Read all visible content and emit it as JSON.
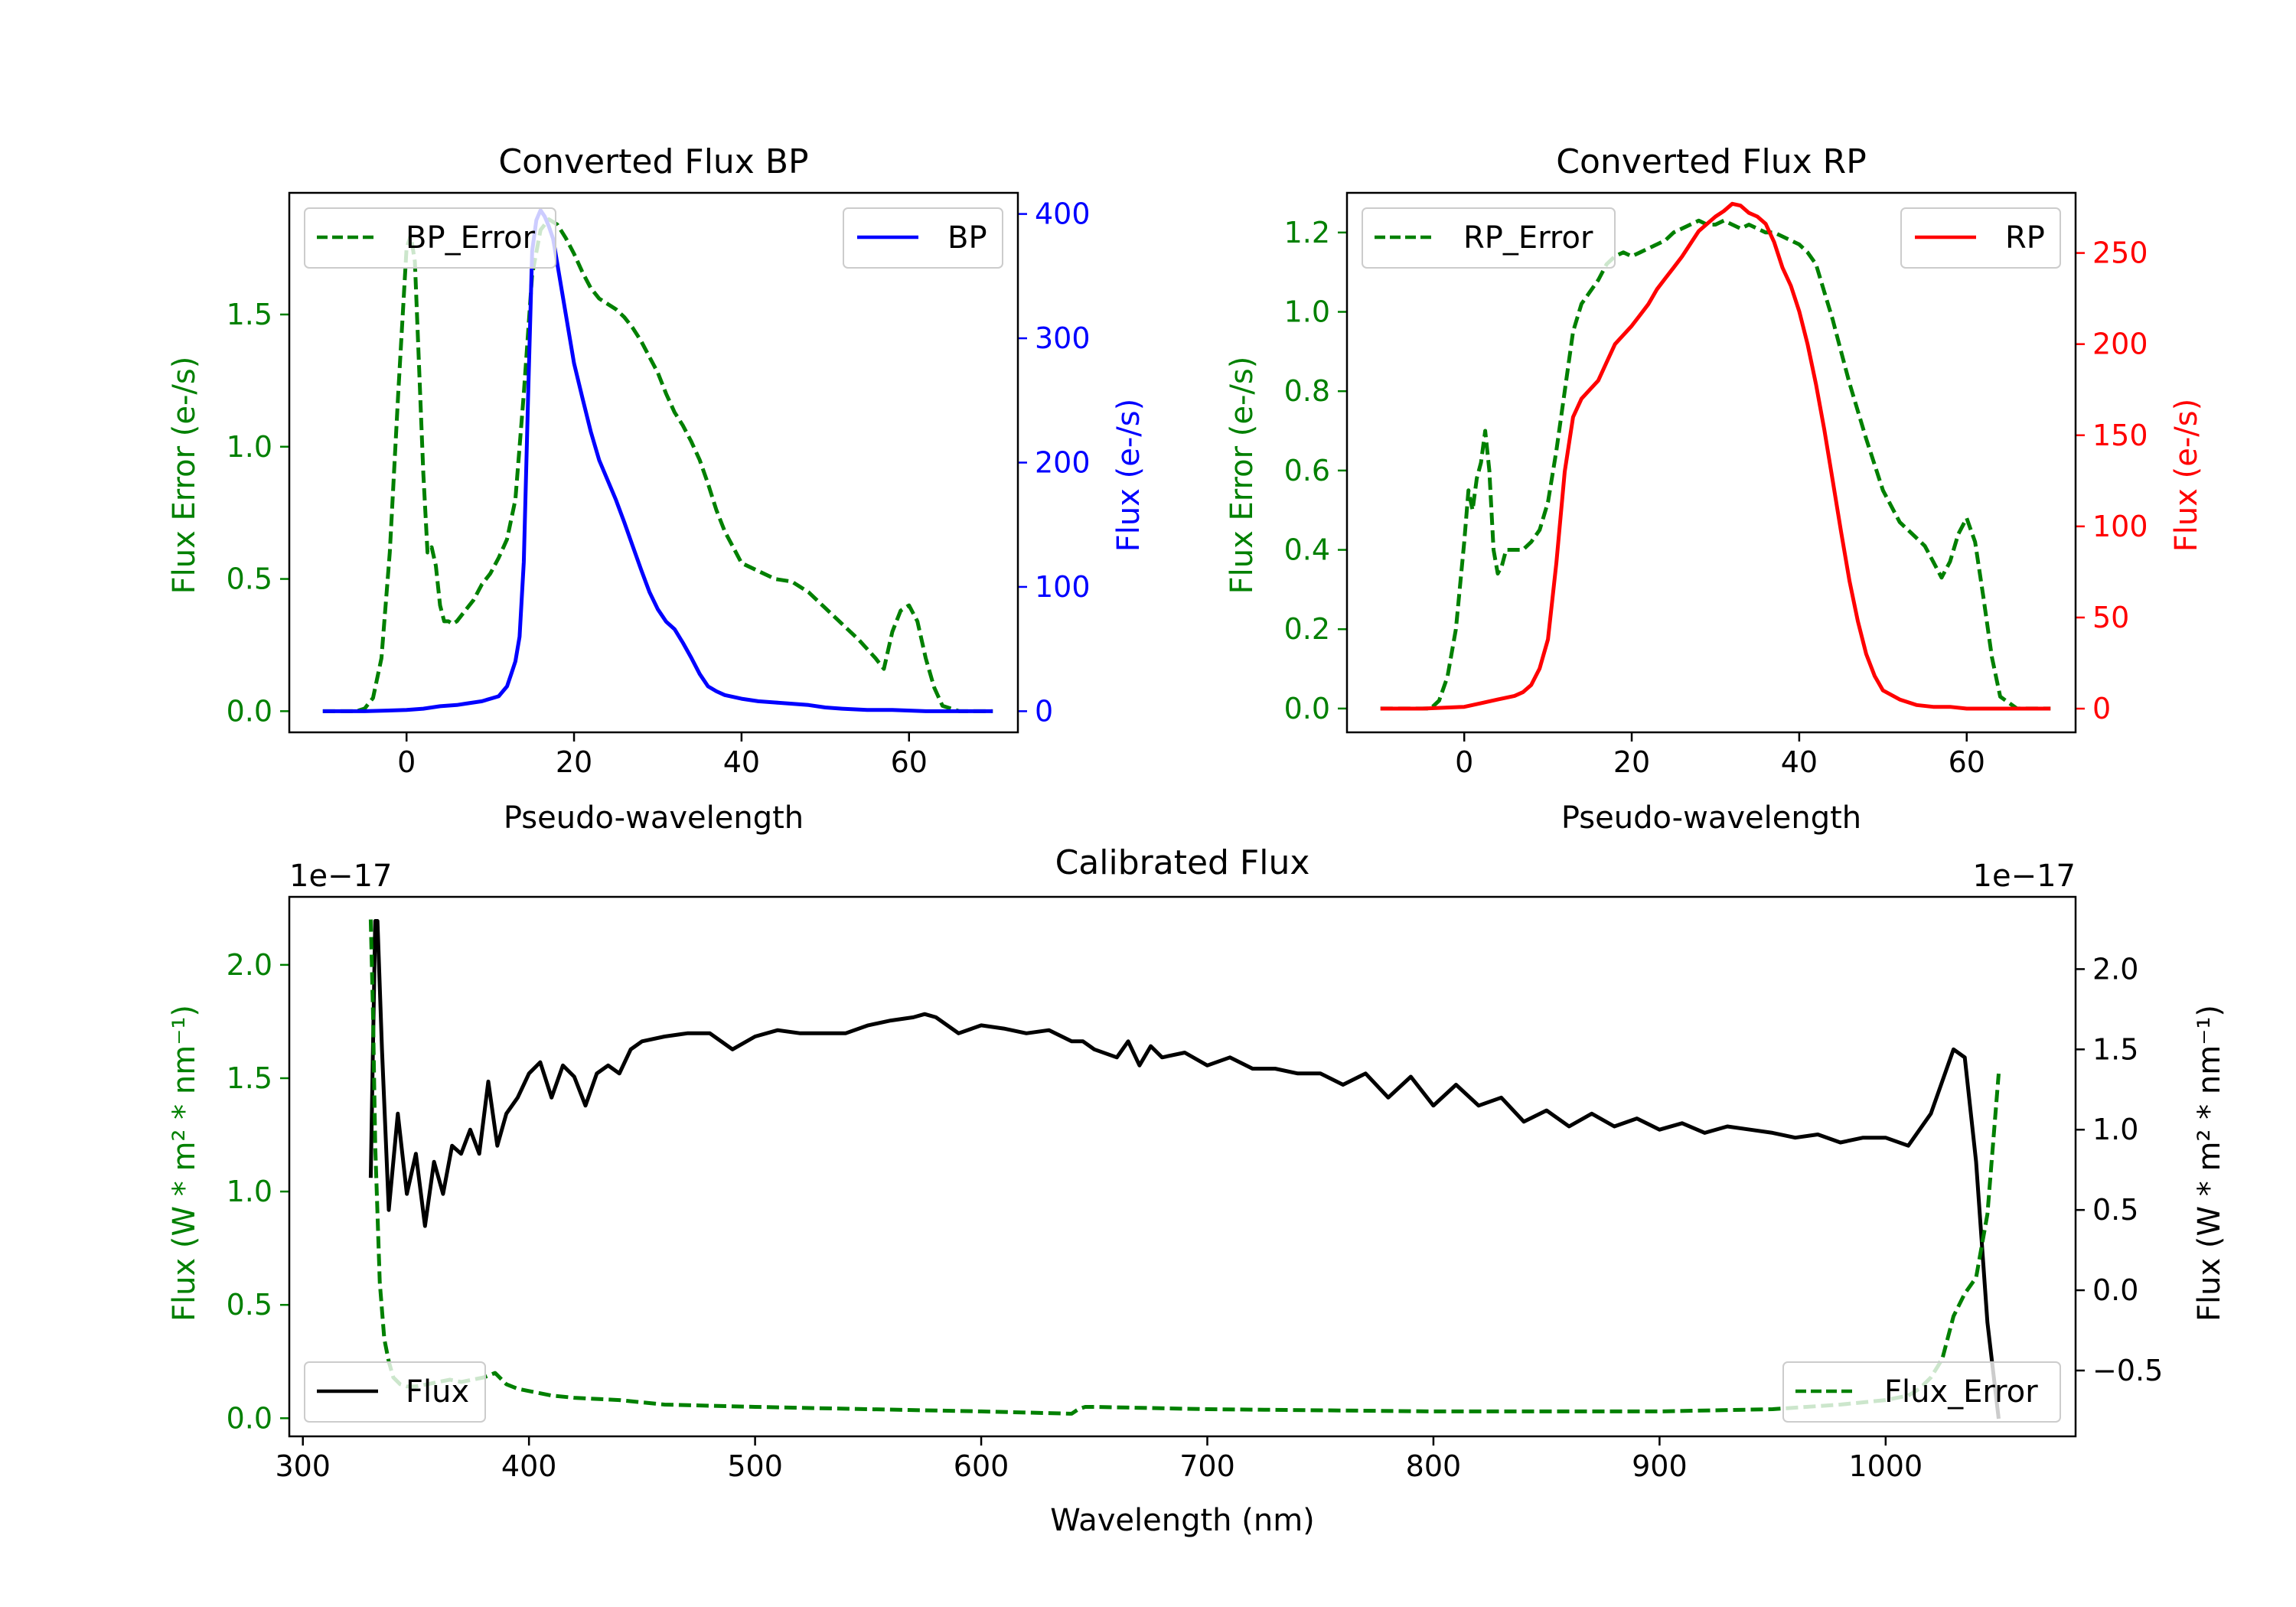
{
  "colors": {
    "green": "#008000",
    "blue": "#0000ff",
    "red": "#ff0000",
    "black": "#000000"
  },
  "chart_data": [
    {
      "id": "bp",
      "type": "line",
      "title": "Converted Flux BP",
      "xlabel": "Pseudo-wavelength",
      "ylabel_left": "Flux Error (e-/s)",
      "ylabel_right": "Flux (e-/s)",
      "xlim": [
        -14,
        73
      ],
      "ylim_left": [
        -0.08,
        1.96
      ],
      "ylim_right": [
        -17,
        417
      ],
      "xticks": [
        0,
        20,
        40,
        60
      ],
      "yticks_left": [
        "0.0",
        "0.5",
        "1.0",
        "1.5"
      ],
      "yticks_left_values": [
        0,
        0.5,
        1.0,
        1.5
      ],
      "yticks_right": [
        "0",
        "100",
        "200",
        "300",
        "400"
      ],
      "yticks_right_values": [
        0,
        100,
        200,
        300,
        400
      ],
      "series": [
        {
          "name": "BP_Error",
          "axis": "left",
          "style": "dashed",
          "color": "green",
          "x": [
            -10,
            -6,
            -5,
            -4,
            -3,
            -2,
            -1,
            0,
            0.5,
            1,
            1.5,
            2,
            2.5,
            3,
            3.5,
            4,
            4.5,
            5,
            5.5,
            6,
            7,
            8,
            9,
            10,
            11,
            12,
            13,
            14,
            15,
            16,
            17,
            18,
            19,
            20,
            21,
            22,
            23,
            24,
            25,
            26,
            27,
            28,
            29,
            30,
            31,
            32,
            33,
            34,
            35,
            36,
            37,
            38,
            39,
            40,
            42,
            44,
            46,
            48,
            50,
            52,
            54,
            56,
            57,
            58,
            59,
            60,
            61,
            62,
            63,
            64,
            66,
            68,
            70
          ],
          "y": [
            0,
            0,
            0.01,
            0.05,
            0.2,
            0.6,
            1.2,
            1.75,
            1.8,
            1.7,
            1.3,
            0.9,
            0.6,
            0.62,
            0.55,
            0.4,
            0.34,
            0.34,
            0.33,
            0.34,
            0.38,
            0.42,
            0.48,
            0.52,
            0.58,
            0.65,
            0.8,
            1.2,
            1.65,
            1.82,
            1.86,
            1.84,
            1.79,
            1.73,
            1.66,
            1.6,
            1.56,
            1.54,
            1.52,
            1.49,
            1.45,
            1.4,
            1.34,
            1.28,
            1.2,
            1.13,
            1.08,
            1.02,
            0.95,
            0.86,
            0.76,
            0.68,
            0.62,
            0.56,
            0.53,
            0.5,
            0.49,
            0.45,
            0.39,
            0.33,
            0.27,
            0.2,
            0.16,
            0.3,
            0.38,
            0.4,
            0.34,
            0.2,
            0.09,
            0.02,
            0,
            0,
            0
          ]
        },
        {
          "name": "BP",
          "axis": "right",
          "style": "solid",
          "color": "blue",
          "x": [
            -10,
            -5,
            0,
            2,
            4,
            6,
            7,
            8,
            9,
            10,
            11,
            12,
            12.5,
            13,
            13.5,
            14,
            14.5,
            15,
            15.5,
            16,
            16.5,
            17,
            17.5,
            18,
            19,
            20,
            21,
            22,
            23,
            24,
            25,
            26,
            27,
            28,
            29,
            30,
            31,
            32,
            33,
            34,
            35,
            36,
            37,
            38,
            40,
            42,
            44,
            46,
            48,
            50,
            52,
            55,
            58,
            62,
            66,
            70
          ],
          "y": [
            0,
            0,
            1,
            2,
            4,
            5,
            6,
            7,
            8,
            10,
            12,
            20,
            30,
            40,
            60,
            120,
            250,
            370,
            395,
            403,
            398,
            390,
            380,
            360,
            320,
            280,
            252,
            225,
            202,
            186,
            170,
            152,
            133,
            114,
            96,
            82,
            72,
            66,
            55,
            43,
            30,
            20,
            16,
            13,
            10,
            8,
            7,
            6,
            5,
            3,
            2,
            1,
            1,
            0,
            0,
            0
          ]
        }
      ],
      "legends": [
        {
          "label": "BP_Error",
          "position": "upper left"
        },
        {
          "label": "BP",
          "position": "upper right"
        }
      ]
    },
    {
      "id": "rp",
      "type": "line",
      "title": "Converted Flux RP",
      "xlabel": "Pseudo-wavelength",
      "ylabel_left": "Flux Error (e-/s)",
      "ylabel_right": "Flux (e-/s)",
      "xlim": [
        -14,
        73
      ],
      "ylim_left": [
        -0.06,
        1.3
      ],
      "ylim_right": [
        -13,
        283
      ],
      "xticks": [
        0,
        20,
        40,
        60
      ],
      "yticks_left": [
        "0.0",
        "0.2",
        "0.4",
        "0.6",
        "0.8",
        "1.0",
        "1.2"
      ],
      "yticks_left_values": [
        0,
        0.2,
        0.4,
        0.6,
        0.8,
        1.0,
        1.2
      ],
      "yticks_right": [
        "0",
        "50",
        "100",
        "150",
        "200",
        "250"
      ],
      "yticks_right_values": [
        0,
        50,
        100,
        150,
        200,
        250
      ],
      "series": [
        {
          "name": "RP_Error",
          "axis": "left",
          "style": "dashed",
          "color": "green",
          "x": [
            -10,
            -5,
            -4,
            -3,
            -2,
            -1,
            0,
            0.5,
            1,
            1.5,
            2,
            2.5,
            3,
            3.5,
            4,
            4.5,
            5,
            6,
            7,
            8,
            9,
            10,
            11,
            12,
            13,
            14,
            15,
            16,
            17,
            18,
            19,
            20,
            21,
            22,
            23,
            24,
            25,
            26,
            27,
            28,
            29,
            30,
            31,
            32,
            33,
            34,
            35,
            36,
            37,
            38,
            39,
            40,
            41,
            42,
            43,
            44,
            45,
            46,
            47,
            48,
            50,
            52,
            54,
            55,
            56,
            57,
            58,
            59,
            60,
            61,
            62,
            63,
            64,
            66,
            68,
            70
          ],
          "y": [
            0,
            0,
            0,
            0.02,
            0.08,
            0.2,
            0.42,
            0.55,
            0.5,
            0.58,
            0.62,
            0.7,
            0.6,
            0.4,
            0.34,
            0.36,
            0.4,
            0.4,
            0.4,
            0.42,
            0.45,
            0.52,
            0.65,
            0.8,
            0.95,
            1.02,
            1.05,
            1.08,
            1.12,
            1.14,
            1.15,
            1.14,
            1.15,
            1.16,
            1.17,
            1.18,
            1.2,
            1.21,
            1.22,
            1.23,
            1.22,
            1.22,
            1.23,
            1.22,
            1.21,
            1.22,
            1.21,
            1.2,
            1.2,
            1.19,
            1.18,
            1.17,
            1.15,
            1.12,
            1.05,
            0.98,
            0.9,
            0.82,
            0.75,
            0.68,
            0.55,
            0.47,
            0.43,
            0.41,
            0.37,
            0.33,
            0.37,
            0.44,
            0.48,
            0.42,
            0.28,
            0.13,
            0.03,
            0,
            0,
            0
          ]
        },
        {
          "name": "RP",
          "axis": "right",
          "style": "solid",
          "color": "red",
          "x": [
            -10,
            -5,
            0,
            2,
            4,
            6,
            7,
            8,
            9,
            10,
            11,
            12,
            13,
            14,
            15,
            16,
            17,
            18,
            19,
            20,
            21,
            22,
            23,
            24,
            25,
            26,
            27,
            28,
            29,
            30,
            31,
            32,
            33,
            34,
            35,
            36,
            37,
            38,
            39,
            40,
            41,
            42,
            43,
            44,
            45,
            46,
            47,
            48,
            49,
            50,
            52,
            54,
            56,
            58,
            60,
            62,
            66,
            70
          ],
          "y": [
            0,
            0,
            1,
            3,
            5,
            7,
            9,
            13,
            22,
            38,
            80,
            130,
            160,
            170,
            175,
            180,
            190,
            200,
            205,
            210,
            216,
            222,
            230,
            236,
            242,
            248,
            255,
            262,
            266,
            270,
            273,
            277,
            276,
            272,
            270,
            266,
            256,
            242,
            232,
            218,
            200,
            178,
            153,
            125,
            97,
            70,
            48,
            30,
            18,
            10,
            5,
            2,
            1,
            1,
            0,
            0,
            0,
            0
          ]
        }
      ],
      "legends": [
        {
          "label": "RP_Error",
          "position": "upper left"
        },
        {
          "label": "RP",
          "position": "upper right"
        }
      ]
    },
    {
      "id": "cal",
      "type": "line",
      "title": "Calibrated Flux",
      "xlabel": "Wavelength (nm)",
      "ylabel_left": "Flux (W * m² * nm⁻¹)",
      "ylabel_right": "Flux (W * m² * nm⁻¹)",
      "offset_left": "1e−17",
      "offset_right": "1e−17",
      "xlim": [
        294,
        1084
      ],
      "ylim_left": [
        -0.08,
        2.3
      ],
      "ylim_right": [
        -0.91,
        2.45
      ],
      "xticks": [
        300,
        400,
        500,
        600,
        700,
        800,
        900,
        1000
      ],
      "yticks_left": [
        "0.0",
        "0.5",
        "1.0",
        "1.5",
        "2.0"
      ],
      "yticks_left_values": [
        0,
        0.5,
        1.0,
        1.5,
        2.0
      ],
      "yticks_right": [
        "−0.5",
        "0.0",
        "0.5",
        "1.0",
        "1.5",
        "2.0"
      ],
      "yticks_right_values": [
        -0.5,
        0,
        0.5,
        1.0,
        1.5,
        2.0
      ],
      "series": [
        {
          "name": "Flux",
          "axis": "right",
          "style": "solid",
          "color": "black",
          "x": [
            330,
            331,
            332,
            333,
            335,
            338,
            342,
            346,
            350,
            354,
            358,
            362,
            366,
            370,
            374,
            378,
            382,
            386,
            390,
            395,
            400,
            405,
            410,
            415,
            420,
            425,
            430,
            435,
            440,
            445,
            450,
            460,
            470,
            480,
            490,
            500,
            510,
            520,
            530,
            540,
            550,
            560,
            570,
            575,
            580,
            590,
            600,
            610,
            620,
            630,
            640,
            645,
            650,
            660,
            665,
            670,
            675,
            680,
            690,
            700,
            710,
            720,
            730,
            740,
            750,
            760,
            770,
            780,
            790,
            800,
            810,
            820,
            830,
            840,
            850,
            860,
            870,
            880,
            890,
            900,
            910,
            920,
            930,
            940,
            950,
            960,
            970,
            980,
            990,
            1000,
            1010,
            1020,
            1025,
            1030,
            1035,
            1040,
            1045,
            1050
          ],
          "y": [
            0.7,
            1.5,
            2.3,
            2.3,
            1.5,
            0.5,
            1.1,
            0.6,
            0.85,
            0.4,
            0.8,
            0.6,
            0.9,
            0.85,
            1.0,
            0.85,
            1.3,
            0.9,
            1.1,
            1.2,
            1.35,
            1.42,
            1.2,
            1.4,
            1.33,
            1.15,
            1.35,
            1.4,
            1.35,
            1.5,
            1.55,
            1.58,
            1.6,
            1.6,
            1.5,
            1.58,
            1.62,
            1.6,
            1.6,
            1.6,
            1.65,
            1.68,
            1.7,
            1.72,
            1.7,
            1.6,
            1.65,
            1.63,
            1.6,
            1.62,
            1.55,
            1.55,
            1.5,
            1.45,
            1.55,
            1.4,
            1.52,
            1.45,
            1.48,
            1.4,
            1.45,
            1.38,
            1.38,
            1.35,
            1.35,
            1.28,
            1.35,
            1.2,
            1.33,
            1.15,
            1.28,
            1.15,
            1.2,
            1.05,
            1.12,
            1.02,
            1.1,
            1.02,
            1.07,
            1.0,
            1.04,
            0.98,
            1.02,
            1.0,
            0.98,
            0.95,
            0.97,
            0.92,
            0.95,
            0.95,
            0.9,
            1.1,
            1.3,
            1.5,
            1.45,
            0.8,
            -0.2,
            -0.8
          ]
        },
        {
          "name": "Flux_Error",
          "axis": "left",
          "style": "dashed",
          "color": "green",
          "x": [
            330,
            331,
            332,
            334,
            336,
            338,
            340,
            343,
            346,
            350,
            355,
            360,
            365,
            370,
            375,
            380,
            385,
            390,
            395,
            400,
            410,
            420,
            440,
            460,
            500,
            550,
            600,
            640,
            643,
            646,
            650,
            700,
            800,
            900,
            950,
            980,
            1000,
            1010,
            1015,
            1020,
            1025,
            1030,
            1035,
            1040,
            1045,
            1050
          ],
          "y": [
            2.2,
            1.8,
            1.2,
            0.6,
            0.35,
            0.25,
            0.18,
            0.15,
            0.14,
            0.14,
            0.15,
            0.16,
            0.17,
            0.16,
            0.17,
            0.18,
            0.2,
            0.15,
            0.13,
            0.12,
            0.1,
            0.09,
            0.08,
            0.06,
            0.05,
            0.04,
            0.03,
            0.02,
            0.04,
            0.05,
            0.05,
            0.04,
            0.03,
            0.03,
            0.04,
            0.06,
            0.08,
            0.1,
            0.13,
            0.18,
            0.26,
            0.45,
            0.55,
            0.62,
            0.9,
            1.52
          ]
        }
      ],
      "legends": [
        {
          "label": "Flux",
          "position": "lower left"
        },
        {
          "label": "Flux_Error",
          "position": "lower right"
        }
      ]
    }
  ]
}
